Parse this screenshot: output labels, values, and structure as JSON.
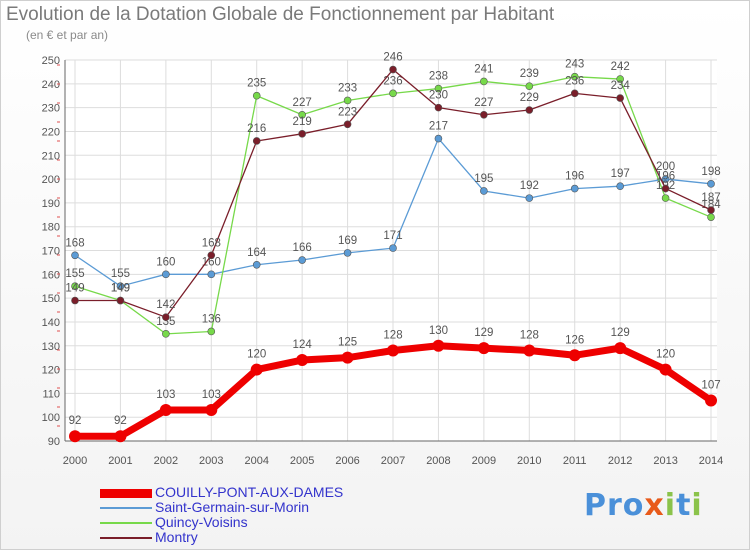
{
  "chart_data": {
    "type": "line",
    "title": "Evolution de la Dotation Globale de Fonctionnement par Habitant",
    "subtitle": "(en € et par an)",
    "xlabel": "",
    "ylabel": "",
    "ylim": [
      90,
      250
    ],
    "yticks": [
      90,
      100,
      110,
      120,
      130,
      140,
      150,
      160,
      170,
      180,
      190,
      200,
      210,
      220,
      230,
      240,
      250
    ],
    "categories": [
      "2000",
      "2001",
      "2002",
      "2003",
      "2004",
      "2005",
      "2006",
      "2007",
      "2008",
      "2009",
      "2010",
      "2011",
      "2012",
      "2013",
      "2014"
    ],
    "series": [
      {
        "name": "Saint-Germain-sur-Morin",
        "color": "#5b9bd5",
        "values": [
          168,
          155,
          160,
          160,
          164,
          166,
          169,
          171,
          217,
          195,
          192,
          196,
          197,
          200,
          198
        ]
      },
      {
        "name": "Quincy-Voisins",
        "color": "#77d94a",
        "values": [
          155,
          149,
          135,
          136,
          235,
          227,
          233,
          236,
          238,
          241,
          239,
          243,
          242,
          192,
          184
        ]
      },
      {
        "name": "Montry",
        "color": "#7a1e2a",
        "values": [
          149,
          149,
          142,
          168,
          216,
          219,
          223,
          246,
          230,
          227,
          229,
          236,
          234,
          196,
          187
        ]
      },
      {
        "name": "COUILLY-PONT-AUX-DAMES",
        "color": "#ee0000",
        "values": [
          92,
          92,
          103,
          103,
          120,
          124,
          125,
          128,
          130,
          129,
          128,
          126,
          129,
          120,
          107
        ]
      }
    ],
    "legend": [
      "COUILLY-PONT-AUX-DAMES",
      "Saint-Germain-sur-Morin",
      "Quincy-Voisins",
      "Montry"
    ],
    "legend_position": "bottom-left"
  },
  "branding": {
    "logo_text": "Proxiti"
  }
}
